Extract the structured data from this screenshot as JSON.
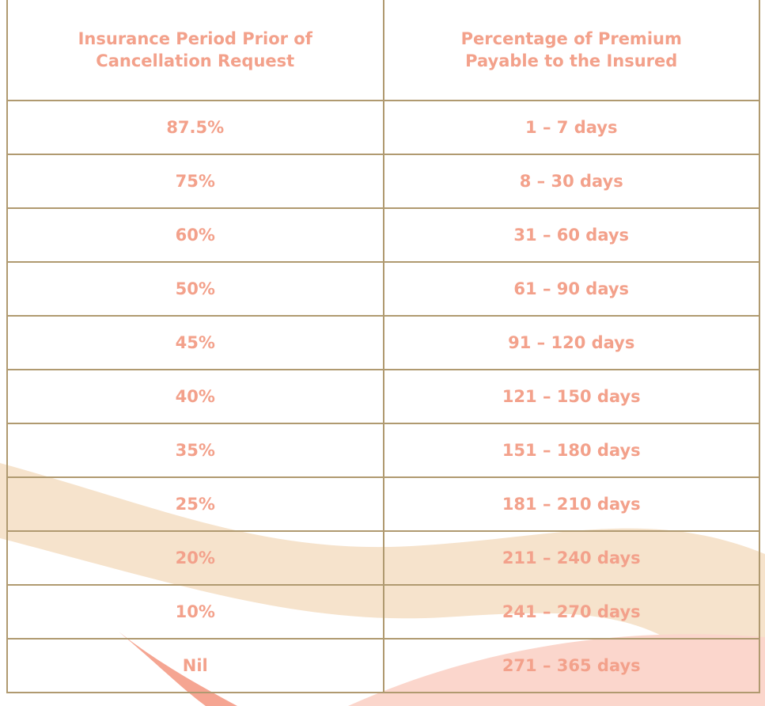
{
  "table": {
    "headers": [
      "Insurance Period Prior of Cancellation Request",
      "Percentage of Premium Payable to the Insured"
    ],
    "rows": [
      [
        "87.5%",
        "1 – 7 days"
      ],
      [
        "75%",
        "8 – 30 days"
      ],
      [
        "60%",
        "31 – 60 days"
      ],
      [
        "50%",
        "61 – 90 days"
      ],
      [
        "45%",
        "91 – 120 days"
      ],
      [
        "40%",
        "121 – 150 days"
      ],
      [
        "35%",
        "151 – 180 days"
      ],
      [
        "25%",
        "181 – 210 days"
      ],
      [
        "20%",
        "211 – 240 days"
      ],
      [
        "10%",
        "241 – 270 days"
      ],
      [
        "Nil",
        "271 – 365 days"
      ]
    ]
  }
}
